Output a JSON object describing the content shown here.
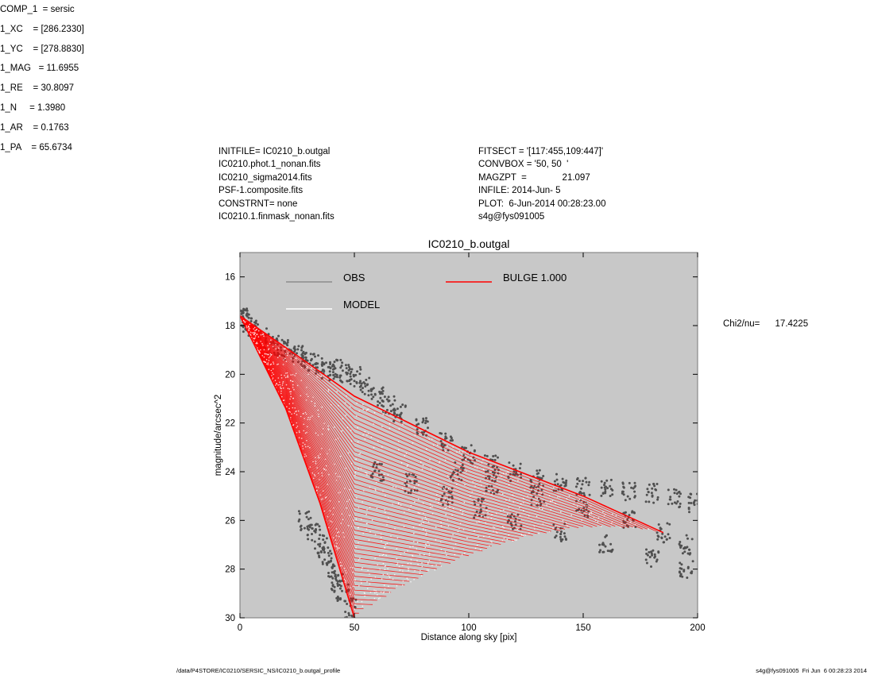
{
  "header": {
    "left_lines": [
      "INITFILE= IC0210_b.outgal",
      "IC0210.phot.1_nonan.fits",
      "IC0210_sigma2014.fits",
      "PSF-1.composite.fits",
      "CONSTRNT= none",
      "IC0210.1.finmask_nonan.fits"
    ],
    "mid_lines": [
      "FITSECT = '[117:455,109:447]'",
      "CONVBOX = '50, 50  '",
      "MAGZPT  =              21.097",
      "INFILE: 2014-Jun- 5",
      "PLOT:  6-Jun-2014 00:28:23.00",
      "s4g@fys091005"
    ],
    "right_lines": [
      "COMP_1  = sersic",
      "1_XC    = [286.2330]",
      "1_YC    = [278.8830]",
      "1_MAG   = 11.6955",
      "1_RE    = 30.8097",
      "1_N     = 1.3980",
      "1_AR    = 0.1763",
      "1_PA    = 65.6734"
    ],
    "chi2": "Chi2/nu=      17.4225"
  },
  "footer": {
    "left": "/data/P4STORE/IC0210/SERSIC_NS/IC0210_b.outgal_profile",
    "right": "s4g@fys091005  Fri Jun  6 00:28:23 2014"
  },
  "chart_data": {
    "type": "scatter",
    "title": "IC0210_b.outgal",
    "xlabel": "Distance along sky [pix]",
    "ylabel": "magnitude/arcsec^2",
    "xlim": [
      0,
      200
    ],
    "ylim": [
      30,
      15
    ],
    "y_inverted": true,
    "x_ticks": [
      0,
      50,
      100,
      150,
      200
    ],
    "y_ticks": [
      16,
      18,
      20,
      22,
      24,
      26,
      28,
      30
    ],
    "background_color": "#c8c8c8",
    "grid": false,
    "legend_placement": "top",
    "legend": [
      {
        "label": "OBS",
        "color": "#8c8c8c"
      },
      {
        "label": "MODEL",
        "color": "#ffffff"
      },
      {
        "label": "BULGE  1.000",
        "color": "#ff0000"
      }
    ],
    "series": [
      {
        "name": "OBS",
        "color": "#505050",
        "points": [
          [
            0,
            17.6
          ],
          [
            2,
            17.7
          ],
          [
            4,
            17.9
          ],
          [
            6,
            18.1
          ],
          [
            10,
            18.5
          ],
          [
            14,
            18.8
          ],
          [
            18,
            18.9
          ],
          [
            22,
            19.0
          ],
          [
            26,
            19.2
          ],
          [
            30,
            19.5
          ],
          [
            34,
            19.6
          ],
          [
            38,
            19.9
          ],
          [
            42,
            19.8
          ],
          [
            46,
            20.0
          ],
          [
            50,
            20.1
          ],
          [
            55,
            20.5
          ],
          [
            60,
            20.9
          ],
          [
            65,
            21.3
          ],
          [
            70,
            21.6
          ],
          [
            80,
            22.2
          ],
          [
            90,
            22.8
          ],
          [
            100,
            23.3
          ],
          [
            110,
            23.7
          ],
          [
            120,
            24.0
          ],
          [
            130,
            24.3
          ],
          [
            140,
            24.5
          ],
          [
            150,
            24.6
          ],
          [
            160,
            24.7
          ],
          [
            170,
            24.8
          ],
          [
            180,
            24.9
          ],
          [
            190,
            25.1
          ],
          [
            199,
            25.3
          ],
          [
            28,
            26.0
          ],
          [
            32,
            26.5
          ],
          [
            35,
            27.0
          ],
          [
            37,
            27.5
          ],
          [
            40,
            28.0
          ],
          [
            42,
            28.6
          ],
          [
            45,
            29.0
          ],
          [
            48,
            29.6
          ],
          [
            60,
            24.0
          ],
          [
            75,
            24.5
          ],
          [
            90,
            25.0
          ],
          [
            105,
            25.5
          ],
          [
            120,
            26.0
          ],
          [
            140,
            26.5
          ],
          [
            160,
            27.0
          ],
          [
            180,
            27.5
          ],
          [
            195,
            28.0
          ],
          [
            150,
            25.5
          ],
          [
            170,
            26.0
          ],
          [
            185,
            26.5
          ],
          [
            195,
            27.0
          ],
          [
            130,
            25.0
          ],
          [
            110,
            24.5
          ],
          [
            95,
            24.0
          ]
        ]
      },
      {
        "name": "MODEL",
        "color": "#ffffff",
        "upper_envelope": [
          [
            0,
            17.6
          ],
          [
            20,
            18.9
          ],
          [
            50,
            20.9
          ],
          [
            100,
            23.2
          ],
          [
            150,
            25.0
          ],
          [
            185,
            26.5
          ]
        ],
        "lower_envelope": [
          [
            0,
            17.6
          ],
          [
            20,
            21.4
          ],
          [
            35,
            25.3
          ],
          [
            50,
            30.0
          ]
        ]
      },
      {
        "name": "BULGE  1.000",
        "color": "#ff0000",
        "upper_envelope": [
          [
            0,
            17.6
          ],
          [
            20,
            18.9
          ],
          [
            50,
            20.9
          ],
          [
            100,
            23.2
          ],
          [
            150,
            25.0
          ],
          [
            185,
            26.5
          ]
        ],
        "lower_envelope": [
          [
            0,
            17.6
          ],
          [
            20,
            21.4
          ],
          [
            35,
            25.3
          ],
          [
            50,
            30.0
          ]
        ]
      }
    ]
  }
}
